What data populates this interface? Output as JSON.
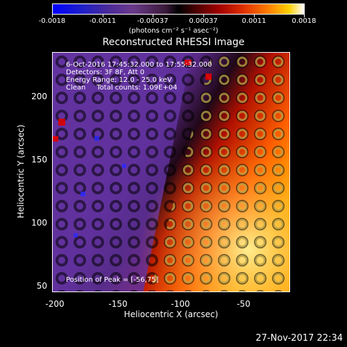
{
  "colorbar": {
    "labels": [
      "-0.0018",
      "-0.0011",
      "-0.00037",
      "0.00037",
      "0.0011",
      "0.0018"
    ],
    "units": "(photons cm⁻² s⁻¹ asec⁻²)"
  },
  "title": "Reconstructed RHESSI Image",
  "annotations": {
    "time": "6-Oct-2016 17:45:32.000 to 17:55:32.000",
    "detectors": "Detectors: 3F 8F, Att 0",
    "energy": "Energy Range: 12.0 - 25.0 keV",
    "method": "Clean     Total counts: 1.09E+04",
    "peak": "Position of Peak = [-56,75]"
  },
  "axes": {
    "xlabel": "Heliocentric X (arcsec)",
    "ylabel": "Heliocentric Y (arcsec)",
    "xticks": [
      "-200",
      "-150",
      "-100",
      "-50"
    ],
    "yticks": [
      "200",
      "150",
      "100",
      "50"
    ]
  },
  "timestamp": "27-Nov-2017 22:34",
  "colors": {
    "low": "#0000ff",
    "mid": "#000000",
    "high": "#ffffff"
  }
}
